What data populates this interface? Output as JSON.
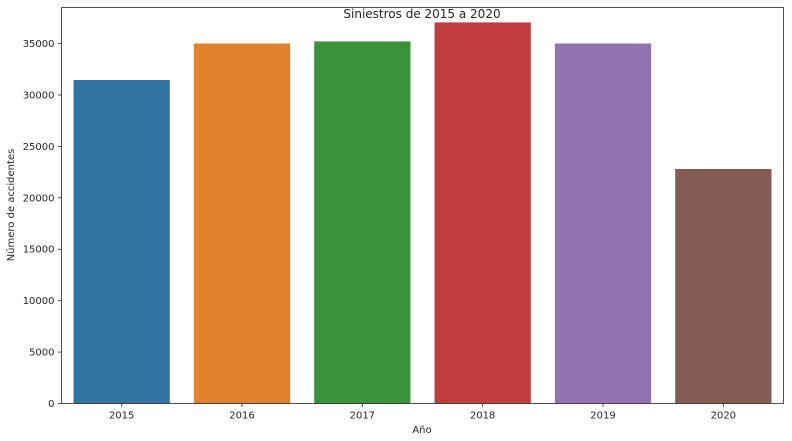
{
  "chart_data": {
    "type": "bar",
    "title": "Siniestros de 2015 a 2020",
    "xlabel": "Año",
    "ylabel": "Número de accidentes",
    "categories": [
      "2015",
      "2016",
      "2017",
      "2018",
      "2019",
      "2020"
    ],
    "values": [
      31450,
      35000,
      35200,
      37050,
      35000,
      22800
    ],
    "colors": [
      "#3274a1",
      "#e1812c",
      "#3a923a",
      "#c03d3e",
      "#9372b2",
      "#845b53"
    ],
    "ylim": [
      0,
      38500
    ],
    "yticks": [
      0,
      5000,
      10000,
      15000,
      20000,
      25000,
      30000,
      35000
    ],
    "grid": false,
    "legend": "none"
  }
}
